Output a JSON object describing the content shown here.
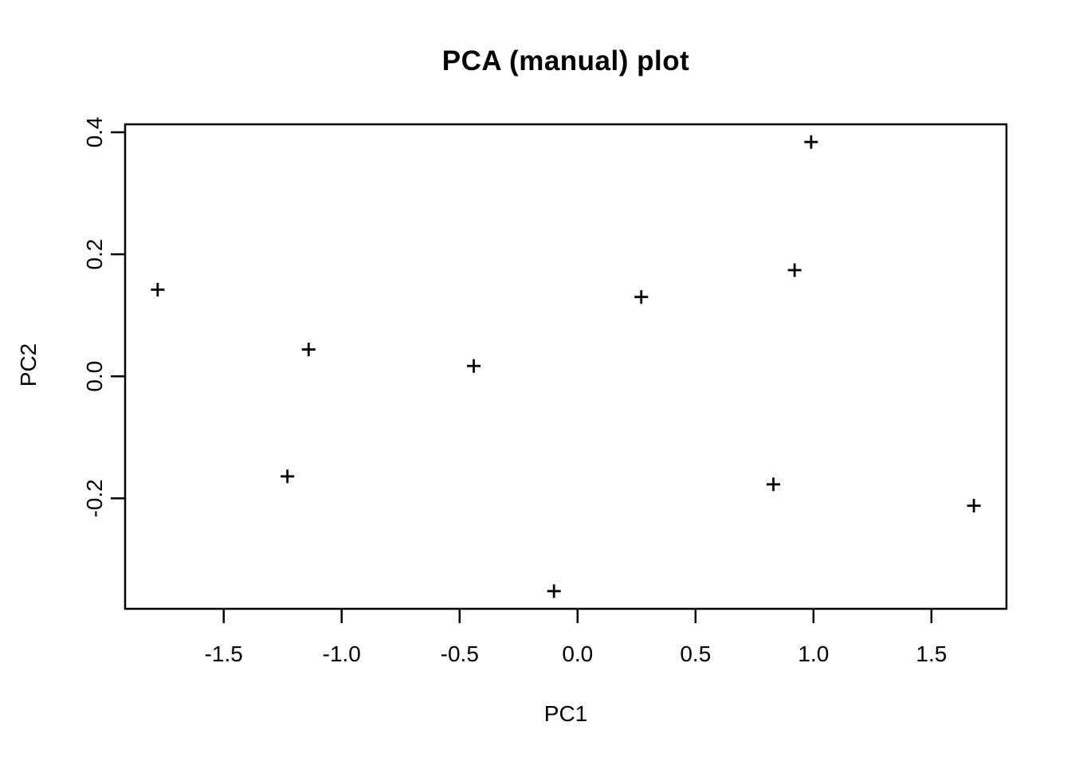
{
  "figure": {
    "background_color": "#ffffff",
    "foreground_color": "#000000"
  },
  "chart_data": {
    "type": "scatter",
    "title": "PCA (manual) plot",
    "xlabel": "PC1",
    "ylabel": "PC2",
    "marker": "plus",
    "color": "#000000",
    "grid": false,
    "legend": "none",
    "xlim": [
      -1.918,
      1.818
    ],
    "ylim": [
      -0.381,
      0.413
    ],
    "xticks": [
      -1.5,
      -1.0,
      -0.5,
      0.0,
      0.5,
      1.0,
      1.5
    ],
    "xtick_labels": [
      "-1.5",
      "-1.0",
      "-0.5",
      "0.0",
      "0.5",
      "1.0",
      "1.5"
    ],
    "yticks": [
      -0.2,
      0.0,
      0.2,
      0.4
    ],
    "ytick_labels": [
      "-0.2",
      "0.0",
      "0.2",
      "0.4"
    ],
    "points": [
      [
        -1.78,
        0.142
      ],
      [
        -1.23,
        -0.164
      ],
      [
        -1.14,
        0.044
      ],
      [
        -0.44,
        0.017
      ],
      [
        -0.1,
        -0.352
      ],
      [
        0.27,
        0.13
      ],
      [
        0.83,
        -0.177
      ],
      [
        0.92,
        0.174
      ],
      [
        0.99,
        0.384
      ],
      [
        1.68,
        -0.212
      ]
    ]
  }
}
